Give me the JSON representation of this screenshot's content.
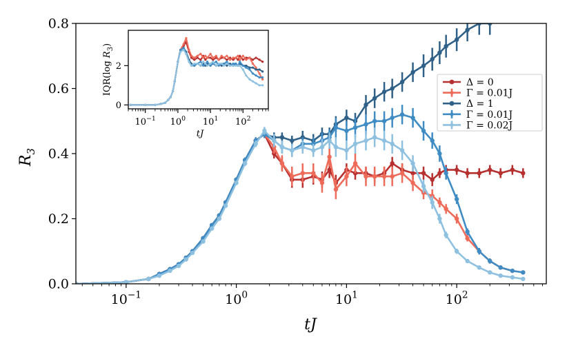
{
  "chart_data": {
    "type": "line",
    "xscale": "log",
    "xlabel": "tJ",
    "ylabel": "R_3",
    "ylabel_main": "R",
    "ylabel_sub": "3",
    "xlim": [
      0.035,
      650
    ],
    "ylim": [
      0,
      0.8
    ],
    "yticks": [
      0.0,
      0.2,
      0.4,
      0.6,
      0.8
    ],
    "ytick_labels": [
      "0.0",
      "0.2",
      "0.4",
      "0.6",
      "0.8"
    ],
    "xticks": [
      0.1,
      1,
      10,
      100
    ],
    "xtick_base": "10",
    "xtick_exponents": [
      "−1",
      "0",
      "1",
      "2"
    ],
    "legend_position": "right",
    "legend_entries": [
      {
        "label": "Δ = 0",
        "color": "#b5302e",
        "marker": "circle"
      },
      {
        "label": "Γ = 0.01J",
        "color": "#ee6b5a",
        "marker": "plus"
      },
      {
        "label": "Δ = 1",
        "color": "#2f6088",
        "marker": "circle"
      },
      {
        "label": "Γ = 0.01J",
        "color": "#3f8cc4",
        "marker": "plus"
      },
      {
        "label": "Γ = 0.02J",
        "color": "#8ec0e0",
        "marker": "plus"
      }
    ],
    "series": [
      {
        "name": "Δ = 0",
        "color": "#b5302e",
        "x": [
          0.035,
          0.1,
          0.16,
          0.2,
          0.25,
          0.3,
          0.35,
          0.4,
          0.5,
          0.6,
          0.7,
          0.8,
          1.0,
          1.2,
          1.5,
          1.8,
          2.2,
          2.6,
          3.2,
          4.0,
          5.0,
          6.0,
          7.0,
          8.0,
          10,
          12,
          15,
          18,
          22,
          26,
          32,
          40,
          50,
          60,
          70,
          80,
          100,
          125,
          160,
          200,
          250,
          320,
          400
        ],
        "y": [
          0.0,
          0.005,
          0.015,
          0.03,
          0.045,
          0.06,
          0.08,
          0.1,
          0.14,
          0.18,
          0.21,
          0.25,
          0.32,
          0.38,
          0.44,
          0.46,
          0.4,
          0.37,
          0.32,
          0.32,
          0.33,
          0.32,
          0.35,
          0.31,
          0.35,
          0.34,
          0.34,
          0.33,
          0.34,
          0.37,
          0.35,
          0.34,
          0.34,
          0.32,
          0.34,
          0.35,
          0.35,
          0.34,
          0.34,
          0.35,
          0.34,
          0.35,
          0.34
        ],
        "err": [
          0,
          0,
          0.003,
          0.003,
          0.004,
          0.004,
          0.004,
          0.005,
          0.005,
          0.005,
          0.006,
          0.006,
          0.007,
          0.008,
          0.01,
          0.012,
          0.015,
          0.02,
          0.025,
          0.025,
          0.025,
          0.025,
          0.025,
          0.025,
          0.02,
          0.02,
          0.02,
          0.02,
          0.02,
          0.02,
          0.02,
          0.02,
          0.02,
          0.02,
          0.015,
          0.015,
          0.015,
          0.015,
          0.015,
          0.015,
          0.015,
          0.015,
          0.015
        ]
      },
      {
        "name": "Γ = 0.01J",
        "color": "#ee6b5a",
        "x": [
          0.035,
          0.1,
          0.16,
          0.2,
          0.25,
          0.3,
          0.35,
          0.4,
          0.5,
          0.6,
          0.7,
          0.8,
          1.0,
          1.2,
          1.5,
          1.8,
          2.2,
          2.6,
          3.2,
          4.0,
          5.0,
          6.0,
          7.0,
          8.0,
          10,
          12,
          15,
          18,
          22,
          26,
          32,
          40,
          50,
          60,
          70,
          80,
          100,
          125,
          160,
          200,
          250,
          320,
          400
        ],
        "y": [
          0.0,
          0.005,
          0.015,
          0.03,
          0.045,
          0.06,
          0.08,
          0.1,
          0.14,
          0.18,
          0.21,
          0.25,
          0.32,
          0.38,
          0.44,
          0.46,
          0.42,
          0.37,
          0.33,
          0.34,
          0.34,
          0.31,
          0.39,
          0.29,
          0.33,
          0.37,
          0.33,
          0.33,
          0.33,
          0.33,
          0.34,
          0.31,
          0.28,
          0.27,
          0.25,
          0.23,
          0.2,
          0.14,
          0.1,
          0.07,
          0.05,
          0.04,
          0.035
        ],
        "err": [
          0,
          0,
          0.003,
          0.003,
          0.004,
          0.004,
          0.004,
          0.005,
          0.005,
          0.005,
          0.006,
          0.006,
          0.007,
          0.008,
          0.01,
          0.012,
          0.02,
          0.025,
          0.03,
          0.03,
          0.03,
          0.03,
          0.03,
          0.03,
          0.03,
          0.03,
          0.03,
          0.03,
          0.03,
          0.03,
          0.03,
          0.025,
          0.02,
          0.02,
          0.015,
          0.015,
          0.015,
          0.01,
          0.01,
          0.008,
          0.006,
          0.005,
          0.005
        ]
      },
      {
        "name": "Δ = 1",
        "color": "#2f6088",
        "x": [
          0.035,
          0.1,
          0.16,
          0.2,
          0.25,
          0.3,
          0.35,
          0.4,
          0.5,
          0.6,
          0.7,
          0.8,
          1.0,
          1.2,
          1.5,
          1.8,
          2.2,
          2.6,
          3.2,
          4.0,
          5.0,
          6.0,
          7.0,
          8.0,
          10,
          12,
          15,
          18,
          22,
          26,
          32,
          40,
          50,
          60,
          70,
          80,
          100,
          125,
          160,
          200
        ],
        "y": [
          0.0,
          0.005,
          0.015,
          0.03,
          0.045,
          0.06,
          0.08,
          0.1,
          0.14,
          0.18,
          0.21,
          0.25,
          0.32,
          0.38,
          0.44,
          0.46,
          0.45,
          0.45,
          0.44,
          0.45,
          0.44,
          0.46,
          0.46,
          0.49,
          0.51,
          0.5,
          0.55,
          0.57,
          0.59,
          0.6,
          0.62,
          0.65,
          0.67,
          0.69,
          0.71,
          0.73,
          0.75,
          0.78,
          0.8,
          0.8
        ],
        "err": [
          0,
          0,
          0.003,
          0.003,
          0.004,
          0.004,
          0.004,
          0.005,
          0.005,
          0.005,
          0.006,
          0.006,
          0.007,
          0.008,
          0.01,
          0.012,
          0.015,
          0.015,
          0.015,
          0.02,
          0.02,
          0.02,
          0.02,
          0.025,
          0.025,
          0.025,
          0.03,
          0.03,
          0.03,
          0.03,
          0.03,
          0.03,
          0.035,
          0.035,
          0.035,
          0.035,
          0.035,
          0.035,
          0.035,
          0.035
        ]
      },
      {
        "name": "Γ = 0.01J",
        "color": "#3f8cc4",
        "x": [
          0.035,
          0.1,
          0.16,
          0.2,
          0.25,
          0.3,
          0.35,
          0.4,
          0.5,
          0.6,
          0.7,
          0.8,
          1.0,
          1.2,
          1.5,
          1.8,
          2.2,
          2.6,
          3.2,
          4.0,
          5.0,
          6.0,
          7.0,
          8.0,
          10,
          12,
          15,
          18,
          22,
          26,
          32,
          40,
          50,
          60,
          70,
          80,
          100,
          125,
          160,
          200,
          250,
          320,
          400
        ],
        "y": [
          0.0,
          0.005,
          0.015,
          0.03,
          0.045,
          0.06,
          0.08,
          0.1,
          0.14,
          0.18,
          0.21,
          0.25,
          0.32,
          0.38,
          0.44,
          0.46,
          0.44,
          0.42,
          0.41,
          0.43,
          0.43,
          0.44,
          0.45,
          0.48,
          0.47,
          0.48,
          0.49,
          0.5,
          0.5,
          0.51,
          0.52,
          0.51,
          0.47,
          0.44,
          0.4,
          0.34,
          0.26,
          0.16,
          0.1,
          0.07,
          0.05,
          0.04,
          0.035
        ],
        "err": [
          0,
          0,
          0.003,
          0.003,
          0.004,
          0.004,
          0.004,
          0.005,
          0.005,
          0.005,
          0.006,
          0.006,
          0.007,
          0.008,
          0.01,
          0.012,
          0.02,
          0.02,
          0.02,
          0.02,
          0.02,
          0.025,
          0.025,
          0.03,
          0.03,
          0.03,
          0.03,
          0.03,
          0.03,
          0.03,
          0.03,
          0.03,
          0.03,
          0.025,
          0.025,
          0.02,
          0.015,
          0.01,
          0.01,
          0.008,
          0.006,
          0.005,
          0.005
        ]
      },
      {
        "name": "Γ = 0.02J",
        "color": "#8ec0e0",
        "x": [
          0.035,
          0.1,
          0.16,
          0.2,
          0.25,
          0.3,
          0.35,
          0.4,
          0.5,
          0.6,
          0.7,
          0.8,
          1.0,
          1.2,
          1.5,
          1.8,
          2.2,
          2.6,
          3.2,
          4.0,
          5.0,
          6.0,
          7.0,
          8.0,
          10,
          12,
          15,
          18,
          22,
          26,
          32,
          40,
          50,
          60,
          70,
          80,
          100,
          125,
          160,
          200,
          250,
          320,
          400
        ],
        "y": [
          0.0,
          0.005,
          0.015,
          0.025,
          0.04,
          0.055,
          0.075,
          0.095,
          0.13,
          0.17,
          0.2,
          0.24,
          0.31,
          0.37,
          0.43,
          0.47,
          0.44,
          0.42,
          0.41,
          0.42,
          0.41,
          0.42,
          0.44,
          0.42,
          0.41,
          0.43,
          0.44,
          0.45,
          0.44,
          0.43,
          0.41,
          0.37,
          0.3,
          0.25,
          0.2,
          0.15,
          0.1,
          0.07,
          0.05,
          0.035,
          0.025,
          0.02,
          0.015
        ],
        "err": [
          0,
          0,
          0.003,
          0.003,
          0.004,
          0.004,
          0.004,
          0.005,
          0.005,
          0.005,
          0.006,
          0.006,
          0.007,
          0.008,
          0.01,
          0.012,
          0.02,
          0.02,
          0.02,
          0.02,
          0.02,
          0.025,
          0.025,
          0.03,
          0.03,
          0.03,
          0.03,
          0.03,
          0.03,
          0.03,
          0.03,
          0.025,
          0.02,
          0.02,
          0.015,
          0.01,
          0.008,
          0.006,
          0.005,
          0.004,
          0.004,
          0.003,
          0.003
        ]
      }
    ],
    "inset": {
      "ylabel_text": "IQR(log ",
      "ylabel_var": "R",
      "ylabel_sub": "3",
      "ylabel_close": ")",
      "xlabel": "tJ",
      "xscale": "log",
      "xlim": [
        0.03,
        600
      ],
      "ylim": [
        -0.2,
        3.8
      ],
      "yticks": [
        0,
        2
      ],
      "ytick_labels": [
        "0",
        "2"
      ],
      "xticks": [
        0.1,
        1,
        10,
        100
      ],
      "xtick_base": "10",
      "xtick_exponents": [
        "−1",
        "0",
        "1",
        "2"
      ],
      "series": [
        {
          "name": "Δ = 0",
          "color": "#b5302e",
          "x": [
            0.035,
            0.1,
            0.2,
            0.3,
            0.4,
            0.5,
            0.6,
            0.7,
            0.8,
            1.0,
            1.2,
            1.5,
            1.8,
            2.2,
            2.6,
            3.2,
            4,
            5,
            6,
            7,
            8,
            10,
            12,
            15,
            18,
            22,
            26,
            32,
            40,
            50,
            60,
            70,
            80,
            100,
            125,
            160,
            200,
            250,
            320,
            400
          ],
          "y": [
            0,
            0,
            0,
            0.05,
            0.1,
            0.25,
            0.4,
            0.7,
            1.2,
            2.2,
            2.8,
            3.0,
            3.2,
            2.7,
            2.4,
            2.3,
            2.4,
            2.3,
            2.5,
            2.3,
            2.4,
            2.4,
            2.3,
            2.4,
            2.3,
            2.4,
            2.4,
            2.3,
            2.4,
            2.3,
            2.4,
            2.3,
            2.5,
            2.3,
            2.4,
            2.4,
            2.3,
            2.4,
            2.3,
            2.2
          ]
        },
        {
          "name": "Γ = 0.01J",
          "color": "#ee6b5a",
          "x": [
            0.035,
            0.1,
            0.2,
            0.3,
            0.4,
            0.5,
            0.6,
            0.7,
            0.8,
            1.0,
            1.2,
            1.5,
            1.8,
            2.2,
            2.6,
            3.2,
            4,
            5,
            6,
            7,
            8,
            10,
            12,
            15,
            18,
            22,
            26,
            32,
            40,
            50,
            60,
            70,
            80,
            100,
            125,
            160,
            200,
            250,
            320,
            400
          ],
          "y": [
            0,
            0,
            0,
            0.05,
            0.1,
            0.25,
            0.4,
            0.7,
            1.2,
            2.2,
            2.8,
            3.1,
            3.4,
            2.8,
            2.5,
            2.4,
            2.5,
            2.6,
            2.4,
            2.5,
            2.4,
            2.6,
            2.4,
            2.5,
            2.3,
            2.5,
            2.4,
            2.5,
            2.3,
            2.4,
            2.4,
            2.5,
            2.3,
            2.5,
            2.3,
            2.4,
            2.1,
            1.9,
            1.6,
            1.3
          ]
        },
        {
          "name": "Δ = 1",
          "color": "#2f6088",
          "x": [
            0.035,
            0.1,
            0.2,
            0.3,
            0.4,
            0.5,
            0.6,
            0.7,
            0.8,
            1.0,
            1.2,
            1.5,
            1.8,
            2.2,
            2.6,
            3.2,
            4,
            5,
            6,
            7,
            8,
            10,
            12,
            15,
            18,
            22,
            26,
            32,
            40,
            50,
            60,
            70,
            80,
            100,
            125,
            160,
            200,
            250,
            320,
            400
          ],
          "y": [
            0,
            0,
            0,
            0.05,
            0.1,
            0.25,
            0.4,
            0.7,
            1.2,
            2.2,
            2.8,
            2.9,
            2.7,
            2.3,
            2.1,
            2.0,
            2.1,
            2.0,
            2.1,
            2.0,
            2.1,
            2.0,
            2.1,
            2.0,
            2.1,
            2.0,
            2.1,
            2.0,
            2.1,
            2.0,
            2.1,
            2.0,
            2.1,
            2.0,
            2.0,
            1.9,
            1.9,
            1.8,
            1.8,
            1.7
          ]
        },
        {
          "name": "Γ = 0.01J",
          "color": "#3f8cc4",
          "x": [
            0.035,
            0.1,
            0.2,
            0.3,
            0.4,
            0.5,
            0.6,
            0.7,
            0.8,
            1.0,
            1.2,
            1.5,
            1.8,
            2.2,
            2.6,
            3.2,
            4,
            5,
            6,
            7,
            8,
            10,
            12,
            15,
            18,
            22,
            26,
            32,
            40,
            50,
            60,
            70,
            80,
            100,
            125,
            160,
            200,
            250,
            320,
            400
          ],
          "y": [
            0,
            0,
            0,
            0.05,
            0.1,
            0.25,
            0.4,
            0.7,
            1.2,
            2.2,
            2.8,
            2.9,
            2.6,
            2.2,
            2.0,
            2.0,
            2.1,
            2.2,
            2.0,
            2.1,
            2.2,
            2.0,
            2.1,
            2.2,
            2.0,
            2.1,
            2.1,
            2.2,
            2.0,
            2.1,
            2.1,
            2.0,
            2.2,
            2.0,
            1.9,
            1.8,
            1.6,
            1.5,
            1.4,
            1.4
          ]
        },
        {
          "name": "Γ = 0.02J",
          "color": "#8ec0e0",
          "x": [
            0.035,
            0.1,
            0.2,
            0.3,
            0.4,
            0.5,
            0.6,
            0.7,
            0.8,
            1.0,
            1.2,
            1.5,
            1.8,
            2.2,
            2.6,
            3.2,
            4,
            5,
            6,
            7,
            8,
            10,
            12,
            15,
            18,
            22,
            26,
            32,
            40,
            50,
            60,
            70,
            80,
            100,
            125,
            160,
            200,
            250,
            320,
            400
          ],
          "y": [
            0,
            0,
            0,
            0.05,
            0.1,
            0.25,
            0.4,
            0.7,
            1.2,
            2.2,
            2.7,
            2.8,
            2.6,
            2.2,
            2.0,
            2.1,
            2.1,
            2.0,
            2.2,
            2.1,
            2.0,
            2.1,
            2.2,
            2.0,
            2.1,
            2.1,
            2.0,
            2.1,
            2.0,
            2.0,
            2.0,
            2.0,
            2.0,
            1.8,
            1.5,
            1.3,
            1.2,
            1.1,
            1.0,
            1.0
          ]
        }
      ]
    }
  }
}
